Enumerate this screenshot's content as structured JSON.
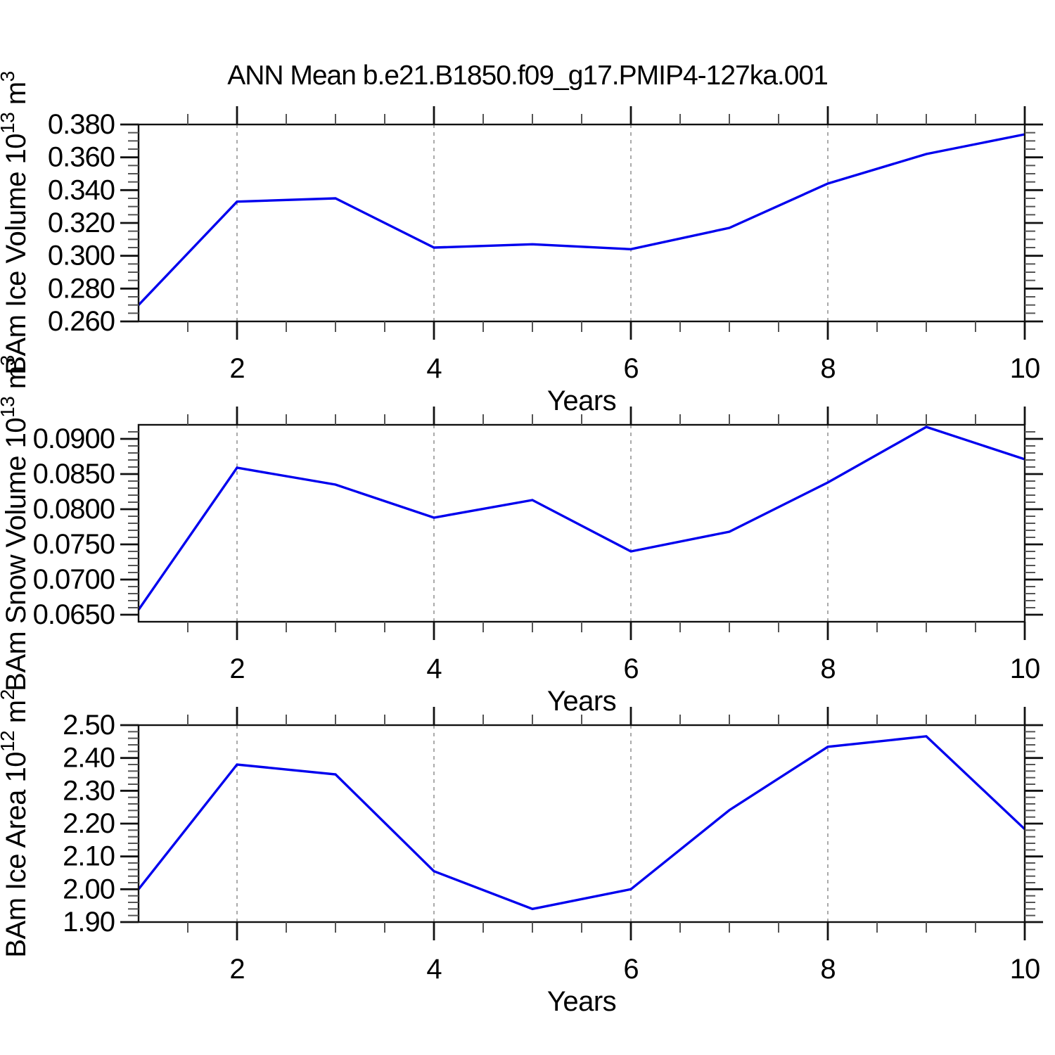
{
  "title": "ANN Mean b.e21.B1850.f09_g17.PMIP4-127ka.001",
  "colors": {
    "line": "#0000ee",
    "grid": "#aaaaaa",
    "axis": "#111111",
    "minor_tick": "#555555",
    "background": "#ffffff"
  },
  "chart_data": [
    {
      "type": "line",
      "id": "ice-volume",
      "ylabel": "BAm Ice Volume 10^13 m^3",
      "ylabel_parts": [
        {
          "t": "BAm Ice Volume 10"
        },
        {
          "t": "13",
          "sup": true
        },
        {
          "t": " m"
        },
        {
          "t": "3",
          "sup": true
        }
      ],
      "xlabel": "Years",
      "x": [
        1,
        2,
        3,
        4,
        5,
        6,
        7,
        8,
        9,
        10
      ],
      "values": [
        0.27,
        0.333,
        0.335,
        0.305,
        0.307,
        0.304,
        0.317,
        0.344,
        0.362,
        0.374
      ],
      "xlim": [
        1,
        10
      ],
      "ylim": [
        0.26,
        0.38
      ],
      "grid_x": [
        2,
        4,
        6,
        8
      ],
      "x_major_values": [
        2,
        4,
        6,
        8,
        10
      ],
      "x_major_labels": [
        "2",
        "4",
        "6",
        "8",
        "10"
      ],
      "x_minor_step": 0.5,
      "y_major_values": [
        0.26,
        0.28,
        0.3,
        0.32,
        0.34,
        0.36,
        0.38
      ],
      "y_major_labels": [
        "0.260",
        "0.280",
        "0.300",
        "0.320",
        "0.340",
        "0.360",
        "0.380"
      ],
      "y_minor_step": 0.005
    },
    {
      "type": "line",
      "id": "snow-volume",
      "ylabel": "BAm Snow Volume 10^13 m^3",
      "ylabel_parts": [
        {
          "t": "BAm Snow Volume 10"
        },
        {
          "t": "13",
          "sup": true
        },
        {
          "t": " m"
        },
        {
          "t": "3",
          "sup": true
        }
      ],
      "xlabel": "Years",
      "x": [
        1,
        2,
        3,
        4,
        5,
        6,
        7,
        8,
        9,
        10
      ],
      "values": [
        0.0657,
        0.0859,
        0.0835,
        0.0788,
        0.0813,
        0.074,
        0.0768,
        0.0838,
        0.0917,
        0.0871
      ],
      "xlim": [
        1,
        10
      ],
      "ylim": [
        0.064,
        0.092
      ],
      "grid_x": [
        2,
        4,
        6,
        8
      ],
      "x_major_values": [
        2,
        4,
        6,
        8,
        10
      ],
      "x_major_labels": [
        "2",
        "4",
        "6",
        "8",
        "10"
      ],
      "x_minor_step": 0.5,
      "y_major_values": [
        0.065,
        0.07,
        0.075,
        0.08,
        0.085,
        0.09
      ],
      "y_major_labels": [
        "0.0650",
        "0.0700",
        "0.0750",
        "0.0800",
        "0.0850",
        "0.0900"
      ],
      "y_minor_step": 0.001
    },
    {
      "type": "line",
      "id": "ice-area",
      "ylabel": "BAm Ice Area 10^12 m^2",
      "ylabel_parts": [
        {
          "t": "BAm Ice Area 10"
        },
        {
          "t": "12",
          "sup": true
        },
        {
          "t": " m"
        },
        {
          "t": "2",
          "sup": true
        }
      ],
      "xlabel": "Years",
      "x": [
        1,
        2,
        3,
        4,
        5,
        6,
        7,
        8,
        9,
        10
      ],
      "values": [
        2.0,
        2.38,
        2.35,
        2.055,
        1.94,
        2.0,
        2.241,
        2.434,
        2.466,
        2.183
      ],
      "xlim": [
        1,
        10
      ],
      "ylim": [
        1.9,
        2.5
      ],
      "grid_x": [
        2,
        4,
        6,
        8
      ],
      "x_major_values": [
        2,
        4,
        6,
        8,
        10
      ],
      "x_major_labels": [
        "2",
        "4",
        "6",
        "8",
        "10"
      ],
      "x_minor_step": 0.5,
      "y_major_values": [
        1.9,
        2.0,
        2.1,
        2.2,
        2.3,
        2.4,
        2.5
      ],
      "y_major_labels": [
        "1.90",
        "2.00",
        "2.10",
        "2.20",
        "2.30",
        "2.40",
        "2.50"
      ],
      "y_minor_step": 0.02
    }
  ]
}
